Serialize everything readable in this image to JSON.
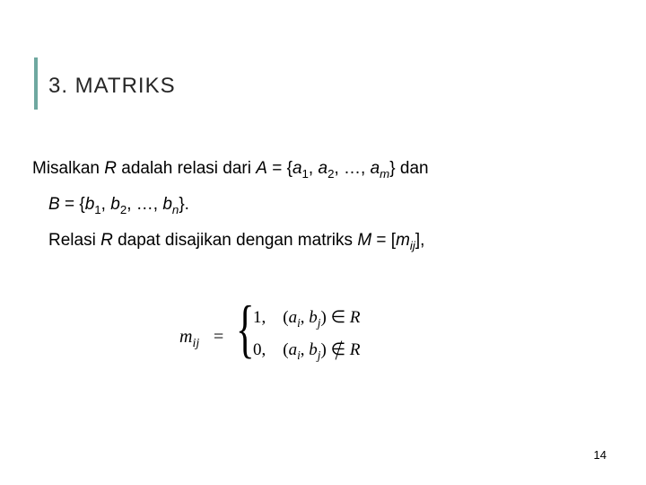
{
  "heading": "3. MATRIKS",
  "line1_pre": "Misalkan ",
  "R": "R",
  "line1_mid1": " adalah relasi dari ",
  "A": "A",
  "line1_mid2": " = {",
  "a": "a",
  "sub1": "1",
  "sub2": "2",
  "subm": "m",
  "subn": "n",
  "comma_sp": ", ",
  "ellipsis": ", …, ",
  "line1_end": "} dan",
  "B": "B",
  "line2_mid": " = {",
  "b": "b",
  "line2_end": "}.",
  "line3_pre": "Relasi ",
  "line3_mid1": " dapat disajikan dengan matriks ",
  "M": "M",
  "line3_mid2": " = [",
  "mij": "m",
  "sub_ij": "ij",
  "line3_end": "],",
  "formula": {
    "lhs_m": "m",
    "lhs_sub": "ij",
    "eq": "=",
    "brace": "{",
    "case1_val": "1,",
    "case2_val": "0,",
    "lp": "(",
    "ai": "a",
    "sub_i": "i",
    "bj": "b",
    "sub_j": "j",
    "rp": ")",
    "in": "∈",
    "Rset": "R"
  },
  "page": "14",
  "colors": {
    "accent": "#6fa8a0",
    "text": "#000000",
    "heading": "#262626",
    "bg": "#ffffff"
  }
}
